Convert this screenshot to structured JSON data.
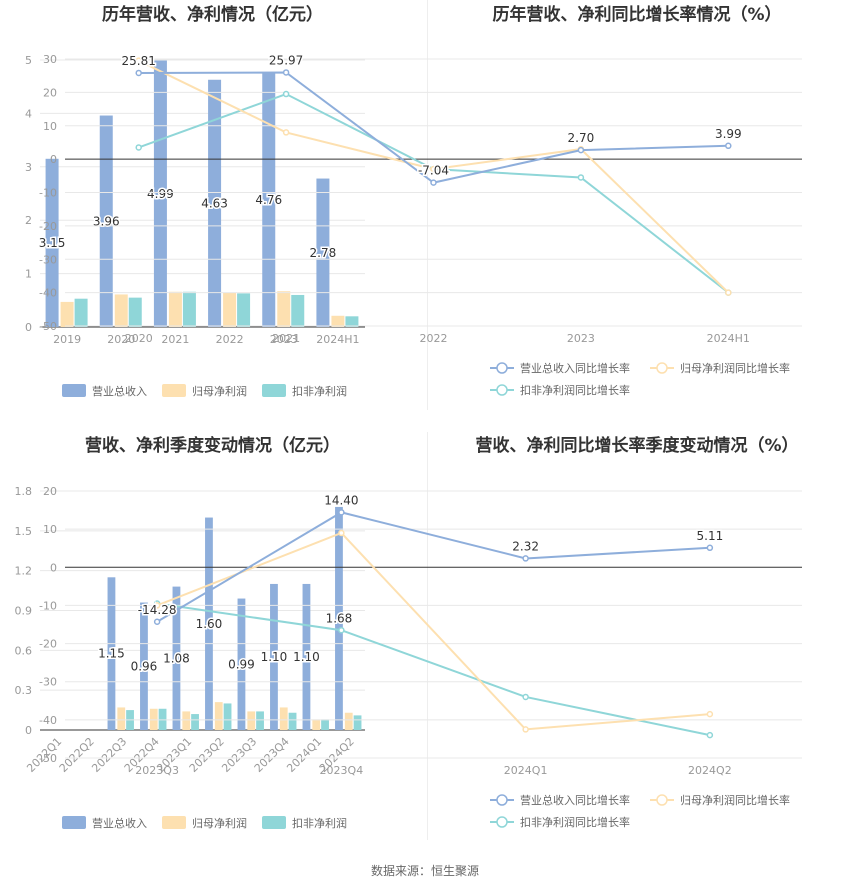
{
  "colors": {
    "revenue": "#8eaedb",
    "net_profit": "#fde0b0",
    "deducted_profit": "#8fd6d8",
    "grid": "#e8e8e8",
    "axis": "#333333"
  },
  "source": "数据来源：恒生聚源",
  "chart_data": [
    {
      "type": "bar",
      "title": "历年营收、净利情况（亿元）",
      "categories": [
        "2019",
        "2020",
        "2021",
        "2022",
        "2023",
        "2024H1"
      ],
      "ylim": [
        0,
        5
      ],
      "yticks": [
        0,
        1,
        2,
        3,
        4,
        5
      ],
      "series": [
        {
          "name": "营业总收入",
          "values": [
            3.15,
            3.96,
            4.99,
            4.63,
            4.76,
            2.78
          ],
          "labels": [
            "3.15",
            "3.96",
            "4.99",
            "4.63",
            "4.76",
            "2.78"
          ]
        },
        {
          "name": "归母净利润",
          "values": [
            0.47,
            0.61,
            0.66,
            0.64,
            0.67,
            0.21
          ]
        },
        {
          "name": "扣非净利润",
          "values": [
            0.53,
            0.55,
            0.66,
            0.63,
            0.6,
            0.2
          ]
        }
      ],
      "legend": "bottom"
    },
    {
      "type": "line",
      "title": "历年营收、净利同比增长率情况（%）",
      "categories": [
        "2020",
        "2021",
        "2022",
        "2023",
        "2024H1"
      ],
      "ylim": [
        -50,
        30
      ],
      "yticks": [
        -50,
        -40,
        -30,
        -20,
        -10,
        0,
        10,
        20,
        30
      ],
      "series": [
        {
          "name": "营业总收入同比增长率",
          "values": [
            25.81,
            25.97,
            -7.04,
            2.7,
            3.99
          ],
          "labels": [
            "25.81",
            "25.97",
            "-7.04",
            "2.70",
            "3.99"
          ]
        },
        {
          "name": "归母净利润同比增长率",
          "values": [
            29.5,
            8.0,
            -3.0,
            3.0,
            -40.0
          ]
        },
        {
          "name": "扣非净利润同比增长率",
          "values": [
            3.5,
            19.5,
            -3.0,
            -5.5,
            -40.0
          ]
        }
      ],
      "legend": "bottom"
    },
    {
      "type": "bar",
      "title": "营收、净利季度变动情况（亿元）",
      "categories": [
        "2022Q1",
        "2022Q2",
        "2022Q3",
        "2022Q4",
        "2023Q1",
        "2023Q2",
        "2023Q3",
        "2023Q4",
        "2024Q1",
        "2024Q2"
      ],
      "ylim": [
        0,
        1.8
      ],
      "yticks": [
        0,
        0.3,
        0.6,
        0.9,
        1.2,
        1.5,
        1.8
      ],
      "ytick_labels": [
        "0",
        "0.3",
        "0.6",
        "0.9",
        "1.2",
        "1.5",
        "1.8"
      ],
      "series": [
        {
          "name": "营业总收入",
          "values": [
            0,
            0,
            1.15,
            0.96,
            1.08,
            1.6,
            0.99,
            1.1,
            1.1,
            1.68
          ],
          "labels": [
            "",
            "",
            "1.15",
            "0.96",
            "1.08",
            "1.60",
            "0.99",
            "1.10",
            "1.10",
            "1.68"
          ]
        },
        {
          "name": "归母净利润",
          "values": [
            0,
            0,
            0.17,
            0.16,
            0.14,
            0.21,
            0.14,
            0.17,
            0.08,
            0.13
          ]
        },
        {
          "name": "扣非净利润",
          "values": [
            0,
            0,
            0.15,
            0.16,
            0.12,
            0.2,
            0.14,
            0.13,
            0.08,
            0.11
          ]
        }
      ],
      "legend": "bottom"
    },
    {
      "type": "line",
      "title": "营收、净利同比增长率季度变动情况（%）",
      "categories": [
        "2023Q3",
        "2023Q4",
        "2024Q1",
        "2024Q2"
      ],
      "ylim": [
        -50,
        20
      ],
      "yticks": [
        -50,
        -40,
        -30,
        -20,
        -10,
        0,
        10,
        20
      ],
      "series": [
        {
          "name": "营业总收入同比增长率",
          "values": [
            -14.28,
            14.4,
            2.32,
            5.11
          ],
          "labels": [
            "-14.28",
            "14.40",
            "2.32",
            "5.11"
          ]
        },
        {
          "name": "归母净利润同比增长率",
          "values": [
            -10.0,
            9.0,
            -42.5,
            -38.5
          ]
        },
        {
          "name": "扣非净利润同比增长率",
          "values": [
            -9.5,
            -16.5,
            -34.0,
            -44.0
          ]
        }
      ],
      "legend": "bottom"
    }
  ]
}
